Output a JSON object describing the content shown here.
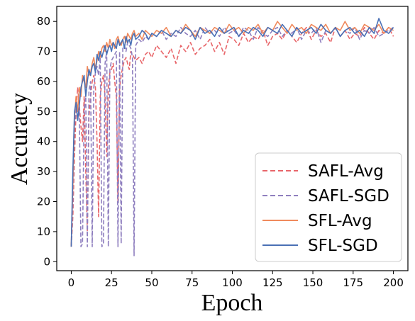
{
  "chart_data": {
    "type": "line",
    "title": "",
    "xlabel": "Epoch",
    "ylabel": "Accuracy",
    "xlim": [
      -9,
      209
    ],
    "ylim": [
      -3,
      85
    ],
    "xticks": [
      0,
      25,
      50,
      75,
      100,
      125,
      150,
      175,
      200
    ],
    "yticks": [
      0,
      10,
      20,
      30,
      40,
      50,
      60,
      70,
      80
    ],
    "grid": false,
    "legend_position": "lower-right",
    "series": [
      {
        "name": "SAFL-Avg",
        "color": "#e8666a",
        "dash": "dashed",
        "x": [
          0,
          1,
          2,
          3,
          4,
          5,
          6,
          7,
          8,
          9,
          10,
          11,
          12,
          13,
          14,
          15,
          16,
          17,
          18,
          19,
          20,
          21,
          22,
          23,
          24,
          25,
          26,
          27,
          28,
          29,
          30,
          31,
          32,
          33,
          34,
          35,
          36,
          37,
          38,
          39,
          40,
          42,
          44,
          46,
          48,
          50,
          53,
          56,
          59,
          62,
          65,
          68,
          71,
          74,
          77,
          80,
          83,
          86,
          89,
          92,
          95,
          98,
          101,
          104,
          107,
          110,
          113,
          116,
          119,
          122,
          125,
          128,
          131,
          134,
          137,
          140,
          143,
          146,
          149,
          152,
          155,
          158,
          161,
          164,
          167,
          170,
          173,
          176,
          179,
          182,
          185,
          188,
          191,
          194,
          197,
          200
        ],
        "y": [
          5,
          15,
          35,
          50,
          58,
          52,
          45,
          40,
          55,
          30,
          10,
          48,
          55,
          60,
          62,
          58,
          40,
          15,
          55,
          60,
          62,
          55,
          35,
          58,
          63,
          64,
          66,
          60,
          55,
          20,
          58,
          62,
          65,
          67,
          68,
          66,
          64,
          70,
          69,
          68,
          67,
          68,
          66,
          69,
          70,
          68,
          72,
          70,
          68,
          71,
          66,
          72,
          70,
          73,
          69,
          71,
          72,
          74,
          70,
          73,
          69,
          75,
          74,
          72,
          76,
          73,
          75,
          74,
          77,
          72,
          75,
          76,
          74,
          77,
          75,
          73,
          76,
          78,
          74,
          77,
          75,
          76,
          73,
          78,
          75,
          77,
          74,
          76,
          75,
          78,
          76,
          74,
          77,
          76,
          78,
          75
        ]
      },
      {
        "name": "SAFL-SGD",
        "color": "#8f7fbf",
        "dash": "dashed",
        "x": [
          0,
          1,
          2,
          3,
          4,
          5,
          6,
          7,
          8,
          9,
          10,
          11,
          12,
          13,
          14,
          15,
          16,
          17,
          18,
          19,
          20,
          21,
          22,
          23,
          24,
          25,
          26,
          27,
          28,
          29,
          30,
          31,
          32,
          33,
          34,
          35,
          36,
          37,
          38,
          39,
          40,
          42,
          44,
          46,
          48,
          50,
          53,
          56,
          59,
          62,
          65,
          68,
          71,
          74,
          77,
          80,
          83,
          86,
          89,
          92,
          95,
          98,
          101,
          104,
          107,
          110,
          113,
          116,
          119,
          122,
          125,
          128,
          131,
          134,
          137,
          140,
          143,
          146,
          149,
          152,
          155,
          158,
          161,
          164,
          167,
          170,
          173,
          176,
          179,
          182,
          185,
          188,
          191,
          194,
          197,
          200
        ],
        "y": [
          5,
          20,
          45,
          52,
          48,
          50,
          5,
          6,
          50,
          55,
          5,
          57,
          60,
          5,
          58,
          63,
          65,
          62,
          68,
          5,
          6,
          66,
          70,
          5,
          64,
          67,
          68,
          69,
          70,
          5,
          70,
          6,
          71,
          72,
          70,
          73,
          72,
          71,
          68,
          2,
          72,
          74,
          73,
          75,
          74,
          76,
          75,
          77,
          74,
          76,
          75,
          78,
          76,
          75,
          77,
          74,
          78,
          76,
          77,
          75,
          78,
          76,
          77,
          75,
          78,
          77,
          74,
          78,
          76,
          75,
          77,
          78,
          75,
          77,
          76,
          78,
          74,
          77,
          76,
          78,
          73,
          77,
          76,
          78,
          75,
          77,
          76,
          78,
          74,
          77,
          76,
          78,
          75,
          76,
          77,
          78
        ]
      },
      {
        "name": "SFL-Avg",
        "color": "#f08a5d",
        "dash": "solid",
        "x": [
          0,
          1,
          2,
          3,
          4,
          5,
          6,
          7,
          8,
          9,
          10,
          11,
          12,
          13,
          14,
          15,
          16,
          17,
          18,
          19,
          20,
          21,
          22,
          23,
          24,
          25,
          26,
          27,
          28,
          29,
          30,
          31,
          32,
          33,
          34,
          35,
          36,
          37,
          38,
          39,
          40,
          42,
          44,
          46,
          48,
          50,
          53,
          56,
          59,
          62,
          65,
          68,
          71,
          74,
          77,
          80,
          83,
          86,
          89,
          92,
          95,
          98,
          101,
          104,
          107,
          110,
          113,
          116,
          119,
          122,
          125,
          128,
          131,
          134,
          137,
          140,
          143,
          146,
          149,
          152,
          155,
          158,
          161,
          164,
          167,
          170,
          173,
          176,
          179,
          182,
          185,
          188,
          191,
          194,
          197,
          200
        ],
        "y": [
          5,
          25,
          48,
          55,
          50,
          58,
          55,
          62,
          60,
          58,
          65,
          62,
          63,
          66,
          68,
          64,
          67,
          70,
          68,
          71,
          72,
          70,
          73,
          71,
          74,
          72,
          73,
          71,
          74,
          75,
          73,
          72,
          74,
          75,
          73,
          76,
          75,
          74,
          76,
          77,
          75,
          76,
          74,
          77,
          76,
          75,
          77,
          76,
          78,
          75,
          77,
          76,
          79,
          77,
          75,
          78,
          77,
          76,
          78,
          77,
          76,
          79,
          77,
          78,
          76,
          78,
          77,
          79,
          76,
          78,
          77,
          80,
          78,
          76,
          79,
          77,
          78,
          76,
          79,
          78,
          77,
          79,
          76,
          78,
          77,
          80,
          77,
          78,
          76,
          79,
          78,
          77,
          79,
          76,
          78,
          77
        ]
      },
      {
        "name": "SFL-SGD",
        "color": "#4a70b5",
        "dash": "solid",
        "x": [
          0,
          1,
          2,
          3,
          4,
          5,
          6,
          7,
          8,
          9,
          10,
          11,
          12,
          13,
          14,
          15,
          16,
          17,
          18,
          19,
          20,
          21,
          22,
          23,
          24,
          25,
          26,
          27,
          28,
          29,
          30,
          31,
          32,
          33,
          34,
          35,
          36,
          37,
          38,
          39,
          40,
          42,
          44,
          46,
          48,
          50,
          53,
          56,
          59,
          62,
          65,
          68,
          71,
          74,
          77,
          80,
          83,
          86,
          89,
          92,
          95,
          98,
          101,
          104,
          107,
          110,
          113,
          116,
          119,
          122,
          125,
          128,
          131,
          134,
          137,
          140,
          143,
          146,
          149,
          152,
          155,
          158,
          161,
          164,
          167,
          170,
          173,
          176,
          179,
          182,
          185,
          188,
          191,
          194,
          197,
          200
        ],
        "y": [
          5,
          30,
          50,
          53,
          47,
          52,
          58,
          60,
          62,
          55,
          60,
          64,
          62,
          65,
          66,
          63,
          69,
          67,
          70,
          68,
          70,
          72,
          69,
          71,
          72,
          70,
          73,
          72,
          71,
          74,
          72,
          73,
          74,
          71,
          75,
          73,
          74,
          72,
          75,
          76,
          74,
          75,
          77,
          76,
          74,
          76,
          75,
          77,
          76,
          75,
          77,
          76,
          78,
          77,
          74,
          78,
          76,
          77,
          75,
          78,
          76,
          77,
          78,
          75,
          77,
          76,
          78,
          77,
          75,
          78,
          77,
          76,
          79,
          77,
          75,
          78,
          76,
          77,
          78,
          76,
          79,
          77,
          76,
          78,
          75,
          77,
          78,
          76,
          77,
          75,
          78,
          76,
          81,
          77,
          76,
          78
        ]
      }
    ]
  }
}
